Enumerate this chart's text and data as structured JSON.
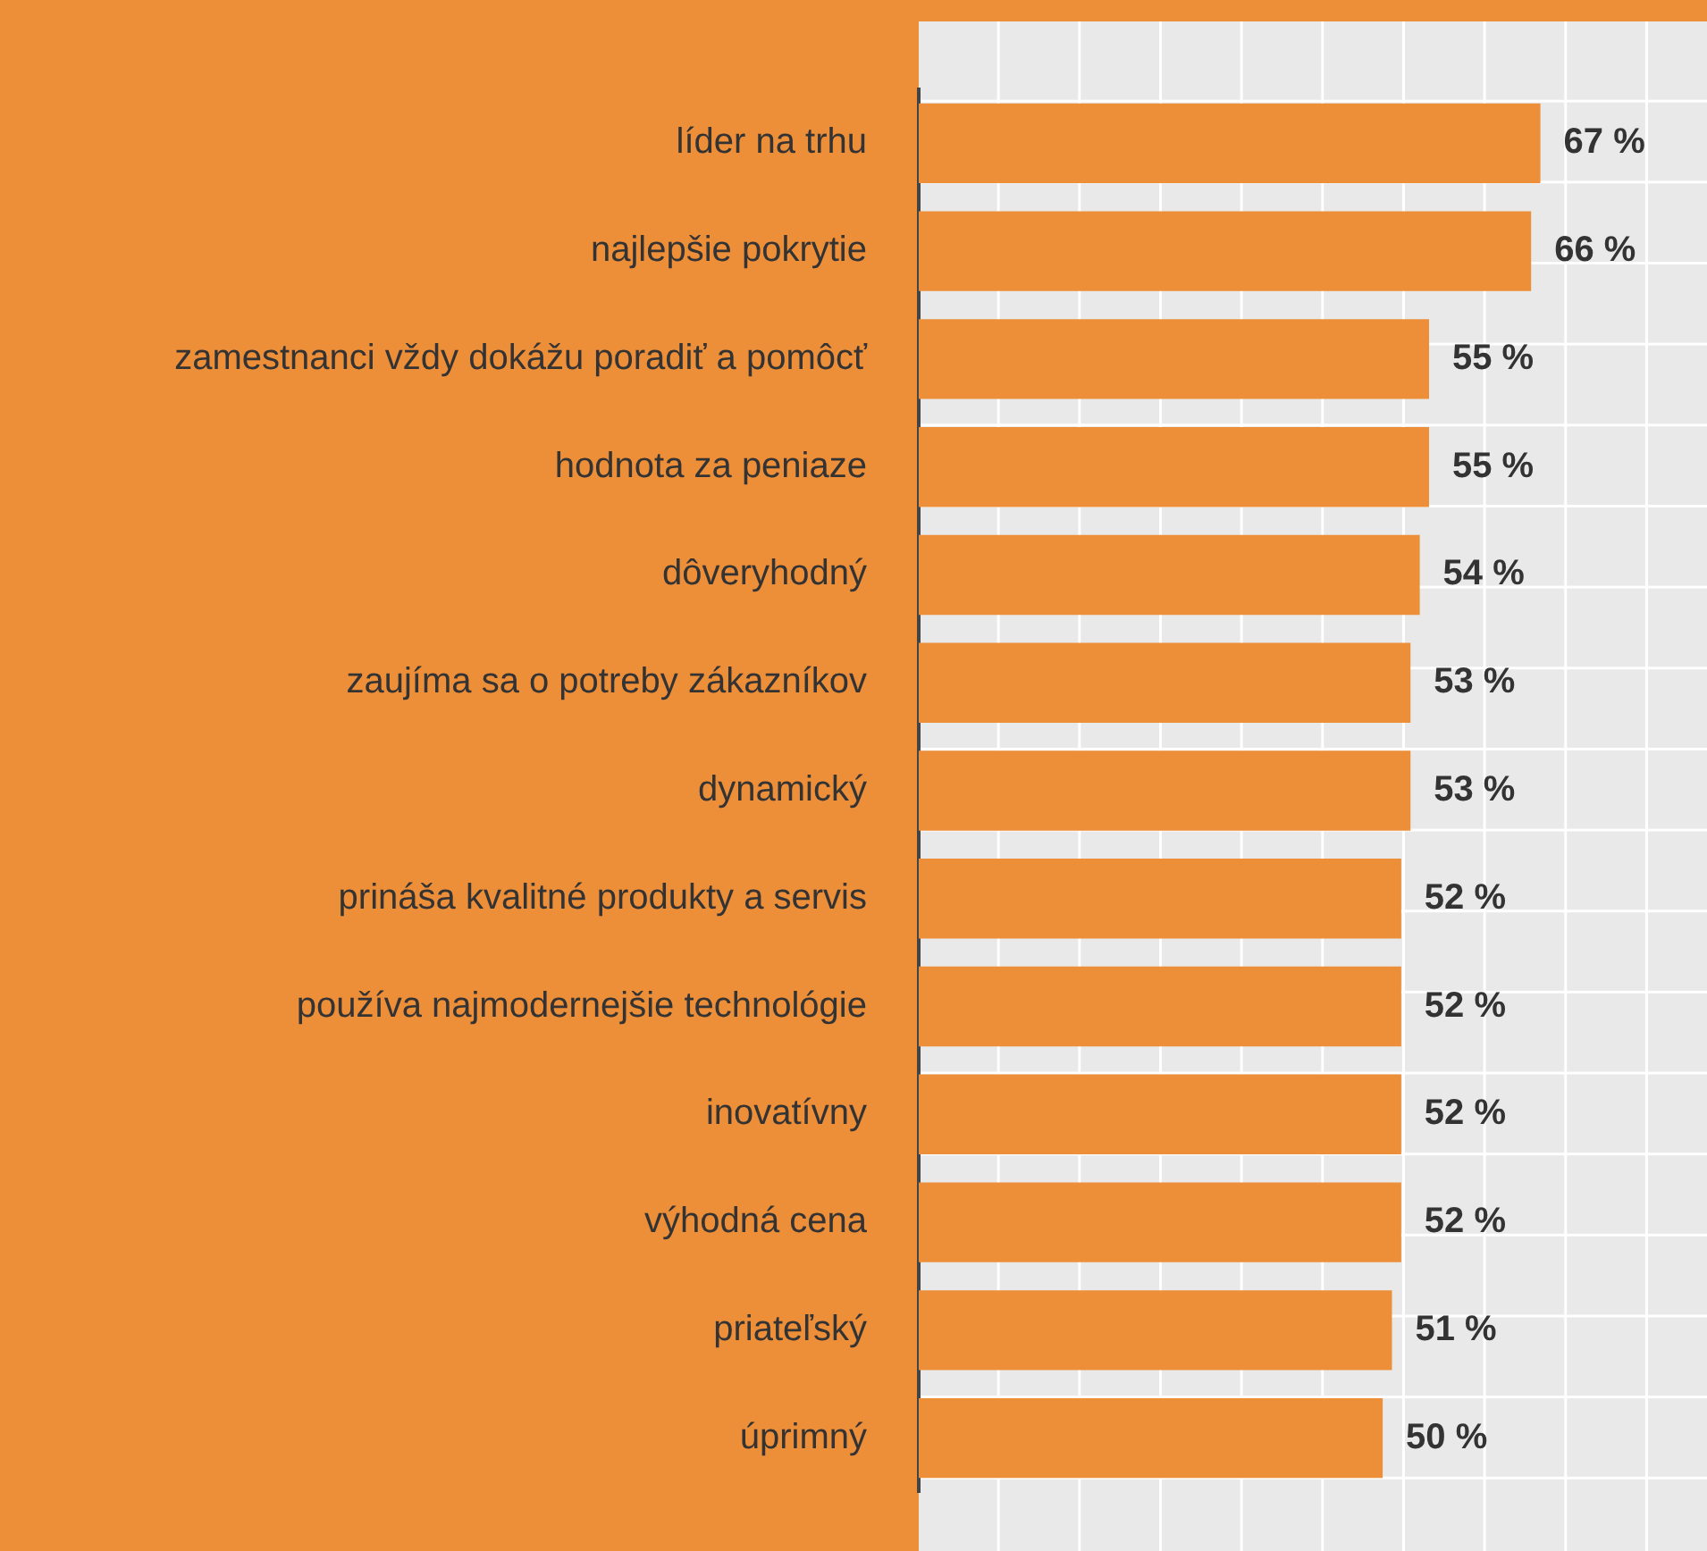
{
  "chart_data": {
    "type": "bar",
    "orientation": "horizontal",
    "categories": [
      "líder na trhu",
      "najlepšie pokrytie",
      "zamestnanci vždy dokážu poradiť a pomôcť",
      "hodnota za peniaze",
      "dôveryhodný",
      "zaujíma sa o potreby zákazníkov",
      "dynamický",
      "prináša kvalitné produkty a servis",
      "používa najmodernejšie technológie",
      "inovatívny",
      "výhodná cena",
      "priateľský",
      "úprimný"
    ],
    "values": [
      67,
      66,
      55,
      55,
      54,
      53,
      53,
      52,
      52,
      52,
      52,
      51,
      50
    ],
    "value_labels": [
      "67 %",
      "66 %",
      "55 %",
      "55 %",
      "54 %",
      "53 %",
      "53 %",
      "52 %",
      "52 %",
      "52 %",
      "52 %",
      "51 %",
      "50 %"
    ],
    "color": "#ed8e39"
  }
}
